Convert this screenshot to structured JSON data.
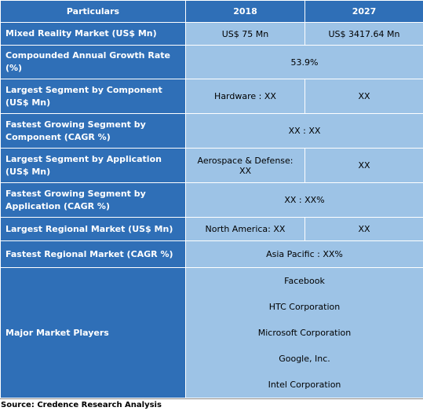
{
  "table": {
    "header": [
      "Particulars",
      "2018",
      "2027"
    ],
    "rows": [
      [
        "Mixed Reality Market (US$ Mn)",
        "US$ 75 Mn",
        "US$ 3417.64 Mn"
      ],
      [
        "Compounded Annual Growth Rate (%)",
        "53.9%"
      ],
      [
        "Largest Segment by Component (US$ Mn)",
        "Hardware : XX",
        "XX"
      ],
      [
        "Fastest Growing Segment by Component (CAGR %)",
        "XX  : XX"
      ],
      [
        "Largest Segment by Application (US$ Mn)",
        "Aerospace & Defense: XX",
        "XX"
      ],
      [
        "Fastest Growing Segment by Application (CAGR %)",
        "XX : XX%"
      ],
      [
        "Largest Regional Market (US$ Mn)",
        "North America: XX",
        "XX"
      ],
      [
        "Fastest Regional Market (CAGR %)",
        "Asia Pacific : XX%"
      ],
      [
        "Major Market Players",
        [
          "Facebook",
          "HTC Corporation",
          "Microsoft Corporation",
          "Google, Inc.",
          "Intel Corporation"
        ]
      ]
    ]
  },
  "source": "Source: Credence Research Analysis"
}
